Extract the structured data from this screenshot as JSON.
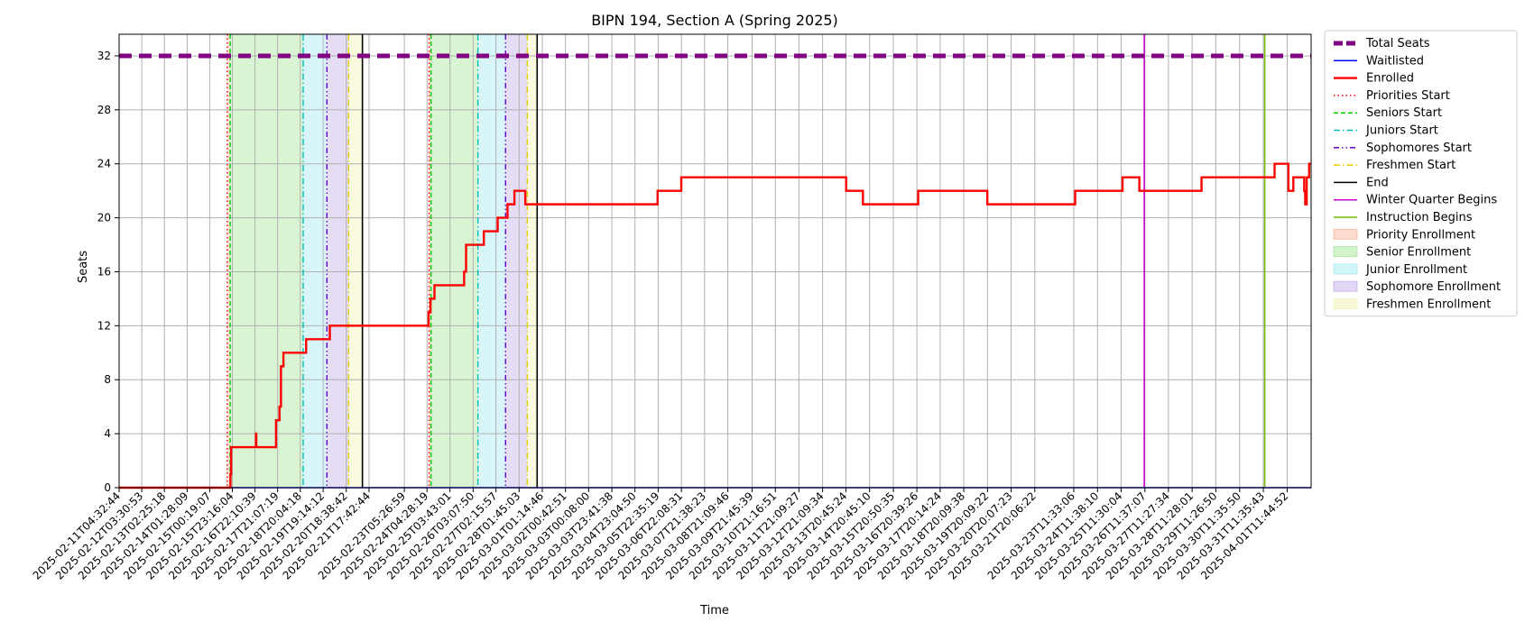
{
  "chart_data": {
    "type": "line",
    "title": "BIPN 194, Section A (Spring 2025)",
    "xlabel": "Time",
    "ylabel": "Seats",
    "ylim": [
      0,
      33.6
    ],
    "yticks": [
      0,
      4,
      8,
      12,
      16,
      20,
      24,
      28,
      32
    ],
    "xlim": [
      "2025-02-11T04:32:44",
      "2025-04-02T12:00:00"
    ],
    "grid": true,
    "legend_position": "outside-right",
    "xticks": [
      "2025-02-11T04:32:44",
      "2025-02-12T03:30:53",
      "2025-02-13T02:25:18",
      "2025-02-14T01:28:09",
      "2025-02-15T00:19:07",
      "2025-02-15T23:16:04",
      "2025-02-16T22:10:39",
      "2025-02-17T21:07:19",
      "2025-02-18T20:04:18",
      "2025-02-19T19:14:12",
      "2025-02-20T18:38:42",
      "2025-02-21T17:42:44",
      "2025-02-23T05:26:59",
      "2025-02-24T04:28:19",
      "2025-02-25T03:43:01",
      "2025-02-26T03:07:50",
      "2025-02-27T02:15:57",
      "2025-02-28T01:45:03",
      "2025-03-01T01:14:46",
      "2025-03-02T00:42:51",
      "2025-03-03T00:08:00",
      "2025-03-03T23:41:38",
      "2025-03-04T23:04:50",
      "2025-03-05T22:35:19",
      "2025-03-06T22:08:31",
      "2025-03-07T21:38:23",
      "2025-03-08T21:09:46",
      "2025-03-09T21:45:39",
      "2025-03-10T21:16:51",
      "2025-03-11T21:09:27",
      "2025-03-12T21:09:34",
      "2025-03-13T20:45:24",
      "2025-03-14T20:45:10",
      "2025-03-15T20:50:35",
      "2025-03-16T20:39:26",
      "2025-03-17T20:14:24",
      "2025-03-18T20:09:38",
      "2025-03-19T20:09:22",
      "2025-03-20T20:07:23",
      "2025-03-21T20:06:22",
      "2025-03-23T11:33:06",
      "2025-03-24T11:38:10",
      "2025-03-25T11:30:04",
      "2025-03-26T11:37:07",
      "2025-03-27T11:27:34",
      "2025-03-28T11:28:01",
      "2025-03-29T11:26:50",
      "2025-03-30T11:35:50",
      "2025-03-31T11:35:43",
      "2025-04-01T11:44:52"
    ],
    "series": [
      {
        "name": "Total Seats",
        "color": "#800080",
        "style": "thick-dashed",
        "points": [
          [
            "2025-02-11T04:32:44",
            32
          ],
          [
            "2025-04-02T12:00:00",
            32
          ]
        ]
      },
      {
        "name": "Waitlisted",
        "color": "#0000ff",
        "style": "solid",
        "points": [
          [
            "2025-02-11T04:32:44",
            0
          ],
          [
            "2025-04-02T12:00:00",
            0
          ]
        ]
      },
      {
        "name": "Enrolled",
        "color": "#ff0000",
        "style": "step",
        "points": [
          [
            "2025-02-11T04:32:44",
            0
          ],
          [
            "2025-02-15T20:40:00",
            0
          ],
          [
            "2025-02-15T21:20:00",
            1
          ],
          [
            "2025-02-15T22:00:00",
            3
          ],
          [
            "2025-02-16T23:00:00",
            3
          ],
          [
            "2025-02-16T23:10:00",
            4
          ],
          [
            "2025-02-16T23:30:00",
            3
          ],
          [
            "2025-02-17T19:00:00",
            3
          ],
          [
            "2025-02-17T19:30:00",
            5
          ],
          [
            "2025-02-17T23:00:00",
            6
          ],
          [
            "2025-02-18T00:30:00",
            9
          ],
          [
            "2025-02-18T03:00:00",
            10
          ],
          [
            "2025-02-19T02:00:00",
            11
          ],
          [
            "2025-02-20T02:00:00",
            12
          ],
          [
            "2025-02-24T04:30:00",
            12
          ],
          [
            "2025-02-24T06:00:00",
            13
          ],
          [
            "2025-02-24T08:00:00",
            14
          ],
          [
            "2025-02-24T12:00:00",
            15
          ],
          [
            "2025-02-25T18:00:00",
            16
          ],
          [
            "2025-02-25T20:00:00",
            18
          ],
          [
            "2025-02-26T14:00:00",
            19
          ],
          [
            "2025-02-27T04:00:00",
            20
          ],
          [
            "2025-02-27T14:00:00",
            21
          ],
          [
            "2025-02-27T21:00:00",
            22
          ],
          [
            "2025-02-28T08:00:00",
            21
          ],
          [
            "2025-03-05T22:00:00",
            22
          ],
          [
            "2025-03-06T22:00:00",
            23
          ],
          [
            "2025-03-13T21:00:00",
            22
          ],
          [
            "2025-03-14T14:00:00",
            21
          ],
          [
            "2025-03-16T22:00:00",
            22
          ],
          [
            "2025-03-19T20:00:00",
            21
          ],
          [
            "2025-03-23T13:00:00",
            22
          ],
          [
            "2025-03-25T13:00:00",
            23
          ],
          [
            "2025-03-26T06:00:00",
            22
          ],
          [
            "2025-03-28T21:00:00",
            23
          ],
          [
            "2025-03-31T23:00:00",
            24
          ],
          [
            "2025-04-01T13:00:00",
            22
          ],
          [
            "2025-04-01T18:00:00",
            23
          ],
          [
            "2025-04-02T05:00:00",
            22
          ],
          [
            "2025-04-02T06:00:00",
            21
          ],
          [
            "2025-04-02T07:30:00",
            23
          ],
          [
            "2025-04-02T10:00:00",
            24
          ],
          [
            "2025-04-02T12:00:00",
            24
          ]
        ]
      }
    ],
    "vlines": [
      {
        "name": "Priorities Start",
        "color": "#ff0000",
        "style": "dotted",
        "x": [
          "2025-02-15T18:00:00",
          "2025-02-24T06:30:00"
        ]
      },
      {
        "name": "Seniors Start",
        "color": "#00cc00",
        "style": "dashed",
        "x": [
          "2025-02-15T21:00:00",
          "2025-02-24T08:30:00"
        ]
      },
      {
        "name": "Juniors Start",
        "color": "#00bfbf",
        "style": "dashdot",
        "x": [
          "2025-02-18T23:00:00",
          "2025-02-26T08:00:00"
        ]
      },
      {
        "name": "Sophomores Start",
        "color": "#6600cc",
        "style": "dashdotdot",
        "x": [
          "2025-02-19T23:00:00",
          "2025-02-27T12:00:00"
        ]
      },
      {
        "name": "Freshmen Start",
        "color": "#e6cc00",
        "style": "dashdot",
        "x": [
          "2025-02-20T21:00:00",
          "2025-02-28T10:00:00"
        ]
      },
      {
        "name": "End",
        "color": "#000000",
        "style": "solid",
        "x": [
          "2025-02-21T11:00:00",
          "2025-02-28T20:00:00"
        ]
      },
      {
        "name": "Winter Quarter Begins",
        "color": "#cc00cc",
        "style": "solid",
        "x": [
          "2025-03-26T11:00:00"
        ]
      },
      {
        "name": "Instruction Begins",
        "color": "#77bb00",
        "style": "solid",
        "x": [
          "2025-03-31T13:00:00"
        ]
      }
    ],
    "bands": [
      {
        "name": "Priority Enrollment",
        "color": "#f4a582",
        "ranges": [
          [
            "2025-02-15T18:00:00",
            "2025-02-15T21:00:00"
          ],
          [
            "2025-02-24T06:30:00",
            "2025-02-24T08:30:00"
          ]
        ]
      },
      {
        "name": "Senior Enrollment",
        "color": "#90e080",
        "ranges": [
          [
            "2025-02-15T21:00:00",
            "2025-02-18T23:00:00"
          ],
          [
            "2025-02-24T08:30:00",
            "2025-02-26T08:00:00"
          ]
        ]
      },
      {
        "name": "Junior Enrollment",
        "color": "#8ee5ee",
        "ranges": [
          [
            "2025-02-18T23:00:00",
            "2025-02-19T23:00:00"
          ],
          [
            "2025-02-26T08:00:00",
            "2025-02-27T12:00:00"
          ]
        ]
      },
      {
        "name": "Sophomore Enrollment",
        "color": "#b59ae6",
        "ranges": [
          [
            "2025-02-19T23:00:00",
            "2025-02-20T21:00:00"
          ],
          [
            "2025-02-27T12:00:00",
            "2025-02-28T10:00:00"
          ]
        ]
      },
      {
        "name": "Freshmen Enrollment",
        "color": "#f0f0a0",
        "ranges": [
          [
            "2025-02-20T21:00:00",
            "2025-02-21T11:00:00"
          ],
          [
            "2025-02-28T10:00:00",
            "2025-02-28T20:00:00"
          ]
        ]
      }
    ],
    "legend": [
      "Total Seats",
      "Waitlisted",
      "Enrolled",
      "Priorities Start",
      "Seniors Start",
      "Juniors Start",
      "Sophomores Start",
      "Freshmen Start",
      "End",
      "Winter Quarter Begins",
      "Instruction Begins",
      "Priority Enrollment",
      "Senior Enrollment",
      "Junior Enrollment",
      "Sophomore Enrollment",
      "Freshmen Enrollment"
    ]
  }
}
